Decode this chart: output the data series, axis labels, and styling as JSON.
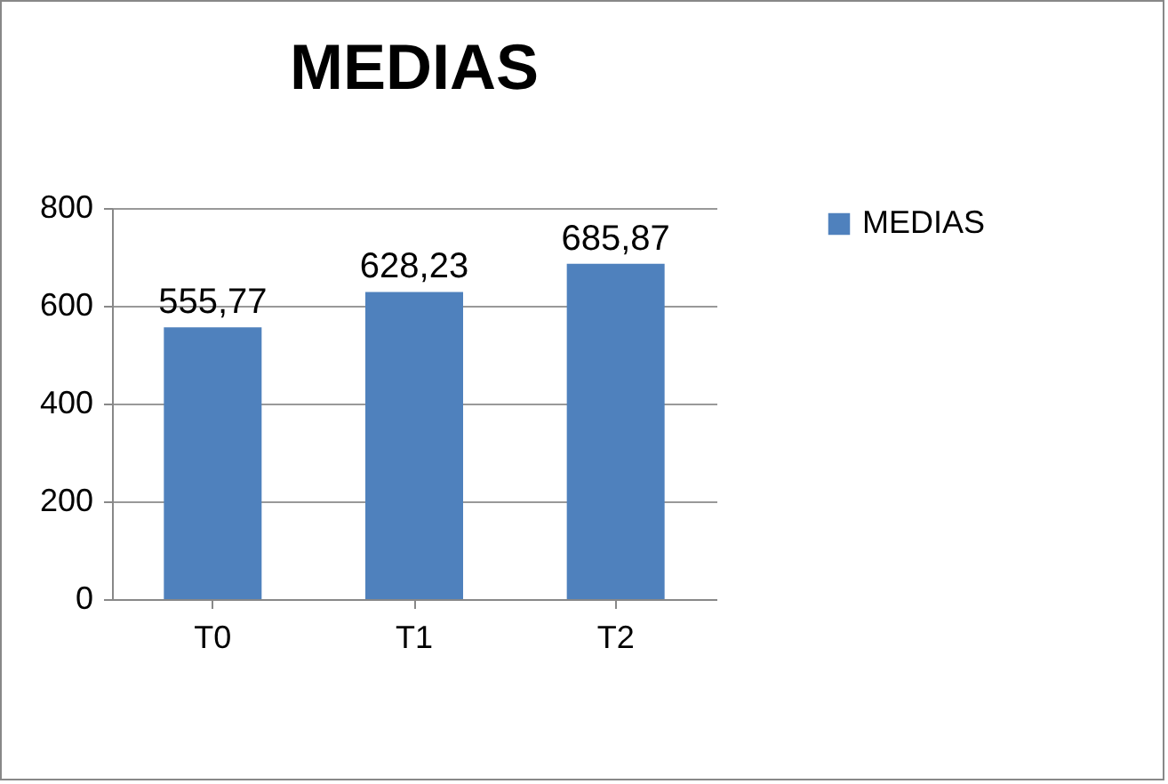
{
  "chart_data": {
    "type": "bar",
    "title": "MEDIAS",
    "categories": [
      "T0",
      "T1",
      "T2"
    ],
    "series": [
      {
        "name": "MEDIAS",
        "color": "#4f81bd",
        "values": [
          555.77,
          628.23,
          685.87
        ],
        "value_labels": [
          "555,77",
          "628,23",
          "685,87"
        ]
      }
    ],
    "ylim": [
      0,
      800
    ],
    "yticks": [
      0,
      200,
      400,
      600,
      800
    ],
    "grid": "y",
    "legend": "right"
  }
}
